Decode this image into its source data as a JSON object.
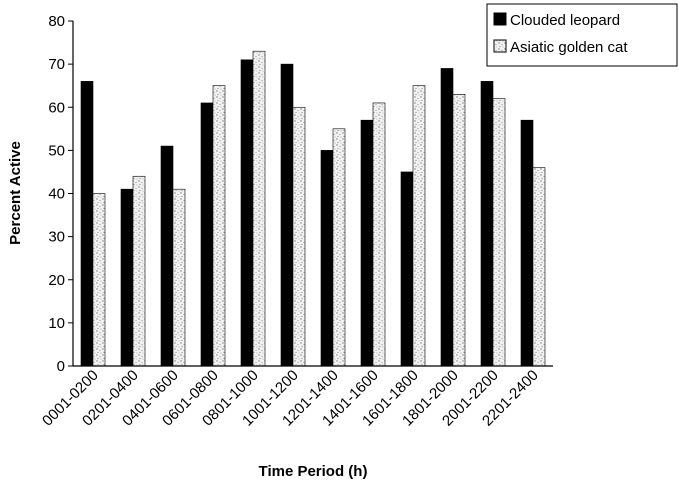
{
  "chart_data": {
    "type": "bar",
    "title": "",
    "xlabel": "Time Period (h)",
    "ylabel": "Percent Active",
    "ylim": [
      0,
      80
    ],
    "yticks": [
      0,
      10,
      20,
      30,
      40,
      50,
      60,
      70,
      80
    ],
    "grid": false,
    "legend_position": "top-right",
    "categories": [
      "0001-0200",
      "0201-0400",
      "0401-0600",
      "0601-0800",
      "0801-1000",
      "1001-1200",
      "1201-1400",
      "1401-1600",
      "1601-1800",
      "1801-2000",
      "2001-2200",
      "2201-2400"
    ],
    "series": [
      {
        "name": "Clouded leopard",
        "color": "#000000",
        "pattern": "solid",
        "values": [
          66,
          41,
          51,
          61,
          71,
          70,
          50,
          57,
          45,
          69,
          66,
          57
        ]
      },
      {
        "name": "Asiatic golden cat",
        "color": "#d9d9d9",
        "pattern": "stipple",
        "values": [
          40,
          44,
          41,
          65,
          73,
          60,
          55,
          61,
          65,
          63,
          62,
          46
        ]
      }
    ]
  }
}
